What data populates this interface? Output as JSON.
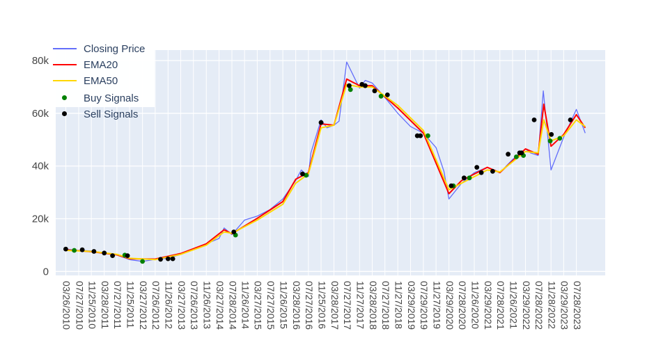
{
  "chart_data": {
    "type": "line",
    "title": "",
    "xlabel": "",
    "ylabel": "",
    "ylim": [
      -1500,
      84000
    ],
    "yticks": [
      0,
      20000,
      40000,
      60000,
      80000
    ],
    "ytick_labels": [
      "0",
      "20k",
      "40k",
      "60k",
      "80k"
    ],
    "xticks": [
      "03/26/2010",
      "07/27/2010",
      "11/25/2010",
      "03/28/2011",
      "07/27/2011",
      "11/25/2011",
      "03/27/2012",
      "07/26/2012",
      "11/26/2012",
      "03/27/2013",
      "07/26/2013",
      "11/26/2013",
      "03/27/2014",
      "07/28/2014",
      "11/26/2014",
      "03/27/2015",
      "07/27/2015",
      "11/26/2015",
      "03/28/2016",
      "07/27/2016",
      "11/25/2016",
      "03/28/2017",
      "07/27/2017",
      "11/27/2017",
      "03/28/2018",
      "07/27/2018",
      "11/27/2018",
      "03/29/2019",
      "07/29/2019",
      "11/27/2019",
      "03/29/2020",
      "07/28/2020",
      "11/26/2020",
      "03/29/2021",
      "07/28/2021",
      "11/26/2021",
      "03/29/2022",
      "07/28/2022",
      "11/28/2022",
      "03/29/2023",
      "07/28/2023"
    ],
    "grid": true,
    "legend_position": "top-left",
    "colors": {
      "background": "#e5ecf6",
      "grid": "#ffffff",
      "closing": "#636efa",
      "ema20": "#ff0000",
      "ema50": "#ffd700",
      "buy": "#008000",
      "sell": "#000000",
      "tick_text": "#444444"
    },
    "series": [
      {
        "name": "Closing Price",
        "kind": "line",
        "x": [
          "2010-03-26",
          "2010-07-27",
          "2010-11-25",
          "2011-03-28",
          "2011-07-27",
          "2011-11-25",
          "2012-03-27",
          "2012-07-26",
          "2012-11-26",
          "2013-03-27",
          "2013-07-26",
          "2013-11-26",
          "2014-03-27",
          "2014-05-15",
          "2014-07-28",
          "2014-11-26",
          "2015-03-27",
          "2015-07-27",
          "2015-11-26",
          "2016-03-28",
          "2016-05-20",
          "2016-07-27",
          "2016-08-20",
          "2016-11-25",
          "2017-01-20",
          "2017-03-28",
          "2017-05-15",
          "2017-07-27",
          "2017-11-27",
          "2018-01-20",
          "2018-03-28",
          "2018-07-27",
          "2018-11-27",
          "2019-03-29",
          "2019-07-29",
          "2019-11-27",
          "2020-02-10",
          "2020-03-29",
          "2020-07-28",
          "2020-11-26",
          "2021-03-29",
          "2021-07-28",
          "2021-11-26",
          "2022-03-29",
          "2022-05-15",
          "2022-07-28",
          "2022-09-15",
          "2022-11-28",
          "2023-03-29",
          "2023-07-28",
          "2023-10-20"
        ],
        "values": [
          8500,
          8000,
          7800,
          7000,
          6200,
          4500,
          3800,
          4600,
          5000,
          6500,
          8500,
          10500,
          12500,
          16500,
          14000,
          19500,
          21000,
          23500,
          27500,
          34500,
          38500,
          36000,
          45000,
          57500,
          54500,
          55500,
          57000,
          79500,
          69500,
          72500,
          71500,
          66000,
          60000,
          55000,
          52500,
          47000,
          38000,
          27500,
          33500,
          37500,
          39500,
          37500,
          42500,
          46500,
          45000,
          44000,
          68500,
          38500,
          51000,
          61500,
          52500
        ]
      },
      {
        "name": "EMA20",
        "kind": "line",
        "x": [
          "2010-03-26",
          "2010-11-25",
          "2011-07-27",
          "2011-11-25",
          "2012-07-26",
          "2013-03-27",
          "2013-11-26",
          "2014-05-15",
          "2014-07-28",
          "2015-03-27",
          "2015-11-26",
          "2016-03-28",
          "2016-07-27",
          "2016-11-25",
          "2017-03-28",
          "2017-07-27",
          "2017-11-27",
          "2018-03-28",
          "2018-11-27",
          "2019-07-29",
          "2020-03-29",
          "2020-07-28",
          "2021-03-29",
          "2021-07-28",
          "2022-03-29",
          "2022-07-28",
          "2022-09-20",
          "2022-11-28",
          "2023-03-29",
          "2023-07-28",
          "2023-10-20"
        ],
        "values": [
          8200,
          7500,
          6300,
          4800,
          4700,
          6800,
          10500,
          15800,
          14300,
          20200,
          26500,
          35000,
          37500,
          56000,
          55500,
          73000,
          70500,
          70500,
          62000,
          52500,
          29500,
          34500,
          39500,
          37500,
          46500,
          44500,
          63500,
          47500,
          52000,
          59500,
          54500
        ]
      },
      {
        "name": "EMA50",
        "kind": "line",
        "x": [
          "2010-03-26",
          "2010-11-25",
          "2011-07-27",
          "2011-11-25",
          "2012-07-26",
          "2013-03-27",
          "2013-11-26",
          "2014-05-15",
          "2014-07-28",
          "2015-03-27",
          "2015-11-26",
          "2016-03-28",
          "2016-07-27",
          "2016-11-25",
          "2017-03-28",
          "2017-07-27",
          "2017-11-27",
          "2018-03-28",
          "2018-11-27",
          "2019-07-29",
          "2020-03-29",
          "2020-07-28",
          "2021-03-29",
          "2021-07-28",
          "2022-03-29",
          "2022-07-28",
          "2022-09-20",
          "2022-11-28",
          "2023-03-29",
          "2023-07-28",
          "2023-10-20"
        ],
        "values": [
          8000,
          7600,
          6500,
          5000,
          4500,
          6500,
          10000,
          15000,
          14500,
          19500,
          25500,
          33500,
          37000,
          54500,
          55500,
          71000,
          70000,
          70000,
          63000,
          53500,
          31000,
          33500,
          38500,
          37800,
          45500,
          45000,
          57500,
          49500,
          51500,
          57500,
          55000
        ]
      },
      {
        "name": "Buy Signals",
        "kind": "markers",
        "x": [
          "2010-06-15",
          "2011-10-10",
          "2012-03-27",
          "2014-09-01",
          "2016-07-05",
          "2017-09-01",
          "2018-06-20",
          "2019-09-10",
          "2020-05-10",
          "2020-10-10",
          "2022-01-01",
          "2022-03-10",
          "2022-11-20",
          "2023-02-20"
        ],
        "values": [
          8000,
          6200,
          3800,
          13800,
          36500,
          69000,
          66500,
          51500,
          32500,
          35500,
          43500,
          44000,
          49500,
          50500
        ]
      },
      {
        "name": "Sell Signals",
        "kind": "markers",
        "x": [
          "2010-03-26",
          "2010-08-30",
          "2010-12-20",
          "2011-03-28",
          "2011-06-15",
          "2011-11-05",
          "2012-09-15",
          "2012-11-26",
          "2013-01-10",
          "2014-08-15",
          "2016-06-01",
          "2016-11-25",
          "2017-08-20",
          "2017-12-20",
          "2018-01-20",
          "2018-04-20",
          "2018-08-20",
          "2019-06-01",
          "2019-07-01",
          "2020-04-20",
          "2020-08-20",
          "2020-12-20",
          "2021-02-01",
          "2021-05-20",
          "2021-10-15",
          "2022-02-01",
          "2022-02-20",
          "2022-06-20",
          "2022-12-01",
          "2023-06-01"
        ],
        "values": [
          8500,
          8200,
          7600,
          7000,
          6000,
          6000,
          4600,
          4800,
          4800,
          15000,
          37000,
          56500,
          70500,
          71000,
          70500,
          68500,
          67000,
          51500,
          51500,
          32500,
          35500,
          39500,
          37500,
          38000,
          44500,
          45000,
          45000,
          57500,
          52000,
          57500
        ]
      }
    ]
  }
}
